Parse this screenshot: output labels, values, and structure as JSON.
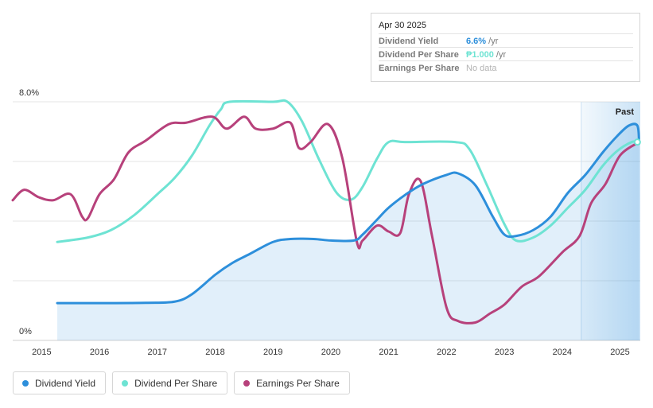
{
  "chart_data": {
    "type": "line",
    "y_axis": {
      "min_label": "0%",
      "max_label": "8.0%",
      "ylim": [
        0,
        8
      ]
    },
    "x_axis": {
      "ticks": [
        "2015",
        "2016",
        "2017",
        "2018",
        "2019",
        "2020",
        "2021",
        "2022",
        "2023",
        "2024",
        "2025"
      ],
      "xlim": [
        2014.5,
        2025.35
      ]
    },
    "past_label": "Past",
    "past_region_start": 2024.33,
    "series": [
      {
        "name": "Dividend Yield",
        "color": "#2d8fdb",
        "filled": true,
        "points": [
          [
            2015.27,
            1.25
          ],
          [
            2016,
            1.25
          ],
          [
            2016.8,
            1.26
          ],
          [
            2017.3,
            1.3
          ],
          [
            2017.6,
            1.55
          ],
          [
            2018,
            2.2
          ],
          [
            2018.3,
            2.6
          ],
          [
            2018.6,
            2.9
          ],
          [
            2019,
            3.3
          ],
          [
            2019.3,
            3.4
          ],
          [
            2019.7,
            3.4
          ],
          [
            2020,
            3.35
          ],
          [
            2020.4,
            3.35
          ],
          [
            2020.55,
            3.55
          ],
          [
            2020.8,
            4.05
          ],
          [
            2021,
            4.45
          ],
          [
            2021.3,
            4.9
          ],
          [
            2021.6,
            5.25
          ],
          [
            2022,
            5.55
          ],
          [
            2022.2,
            5.6
          ],
          [
            2022.5,
            5.2
          ],
          [
            2022.8,
            4.15
          ],
          [
            2023,
            3.55
          ],
          [
            2023.2,
            3.5
          ],
          [
            2023.5,
            3.7
          ],
          [
            2023.8,
            4.15
          ],
          [
            2024.1,
            4.95
          ],
          [
            2024.4,
            5.55
          ],
          [
            2024.7,
            6.3
          ],
          [
            2024.95,
            6.85
          ],
          [
            2025.15,
            7.2
          ],
          [
            2025.3,
            7.2
          ],
          [
            2025.33,
            6.6
          ]
        ]
      },
      {
        "name": "Dividend Per Share",
        "color": "#6ee3d3",
        "filled": false,
        "points": [
          [
            2015.27,
            3.3
          ],
          [
            2015.8,
            3.45
          ],
          [
            2016.2,
            3.7
          ],
          [
            2016.6,
            4.2
          ],
          [
            2017,
            4.9
          ],
          [
            2017.3,
            5.45
          ],
          [
            2017.6,
            6.2
          ],
          [
            2017.9,
            7.2
          ],
          [
            2018.1,
            7.75
          ],
          [
            2018.25,
            8
          ],
          [
            2019,
            8
          ],
          [
            2019.25,
            8
          ],
          [
            2019.5,
            7.35
          ],
          [
            2019.8,
            6.05
          ],
          [
            2020.1,
            4.95
          ],
          [
            2020.35,
            4.72
          ],
          [
            2020.55,
            5.15
          ],
          [
            2020.8,
            6.1
          ],
          [
            2021,
            6.65
          ],
          [
            2021.3,
            6.65
          ],
          [
            2022.15,
            6.65
          ],
          [
            2022.4,
            6.4
          ],
          [
            2022.7,
            5.2
          ],
          [
            2023,
            3.9
          ],
          [
            2023.2,
            3.35
          ],
          [
            2023.5,
            3.45
          ],
          [
            2023.8,
            3.85
          ],
          [
            2024.1,
            4.45
          ],
          [
            2024.4,
            5.05
          ],
          [
            2024.7,
            5.85
          ],
          [
            2024.95,
            6.35
          ],
          [
            2025.2,
            6.65
          ],
          [
            2025.3,
            6.65
          ]
        ]
      },
      {
        "name": "Earnings Per Share",
        "color": "#b7417b",
        "filled": false,
        "points": [
          [
            2014.5,
            4.7
          ],
          [
            2014.7,
            5.05
          ],
          [
            2014.95,
            4.8
          ],
          [
            2015.2,
            4.7
          ],
          [
            2015.5,
            4.9
          ],
          [
            2015.7,
            4.15
          ],
          [
            2015.8,
            4.1
          ],
          [
            2016,
            4.9
          ],
          [
            2016.25,
            5.4
          ],
          [
            2016.5,
            6.3
          ],
          [
            2016.8,
            6.7
          ],
          [
            2017.2,
            7.25
          ],
          [
            2017.5,
            7.3
          ],
          [
            2017.95,
            7.5
          ],
          [
            2018.2,
            7.1
          ],
          [
            2018.5,
            7.5
          ],
          [
            2018.7,
            7.1
          ],
          [
            2019,
            7.1
          ],
          [
            2019.3,
            7.3
          ],
          [
            2019.45,
            6.45
          ],
          [
            2019.65,
            6.65
          ],
          [
            2019.95,
            7.25
          ],
          [
            2020.2,
            6.1
          ],
          [
            2020.45,
            3.3
          ],
          [
            2020.55,
            3.35
          ],
          [
            2020.8,
            3.85
          ],
          [
            2021,
            3.65
          ],
          [
            2021.2,
            3.6
          ],
          [
            2021.35,
            4.9
          ],
          [
            2021.55,
            5.35
          ],
          [
            2021.75,
            3.5
          ],
          [
            2022,
            1.1
          ],
          [
            2022.2,
            0.65
          ],
          [
            2022.5,
            0.6
          ],
          [
            2022.75,
            0.9
          ],
          [
            2023,
            1.2
          ],
          [
            2023.3,
            1.8
          ],
          [
            2023.6,
            2.15
          ],
          [
            2024,
            2.95
          ],
          [
            2024.3,
            3.5
          ],
          [
            2024.5,
            4.6
          ],
          [
            2024.75,
            5.25
          ],
          [
            2025,
            6.2
          ],
          [
            2025.3,
            6.62
          ]
        ]
      }
    ],
    "tooltip": {
      "date": "Apr 30 2025",
      "rows": [
        {
          "label": "Dividend Yield",
          "value": "6.6%",
          "unit": " /yr",
          "color": "#2d8fdb"
        },
        {
          "label": "Dividend Per Share",
          "value": "₱1.000",
          "unit": " /yr",
          "color": "#6ee3d3"
        },
        {
          "label": "Earnings Per Share",
          "value": "No data",
          "unit": "",
          "color": "#b3b3b3"
        }
      ]
    }
  }
}
